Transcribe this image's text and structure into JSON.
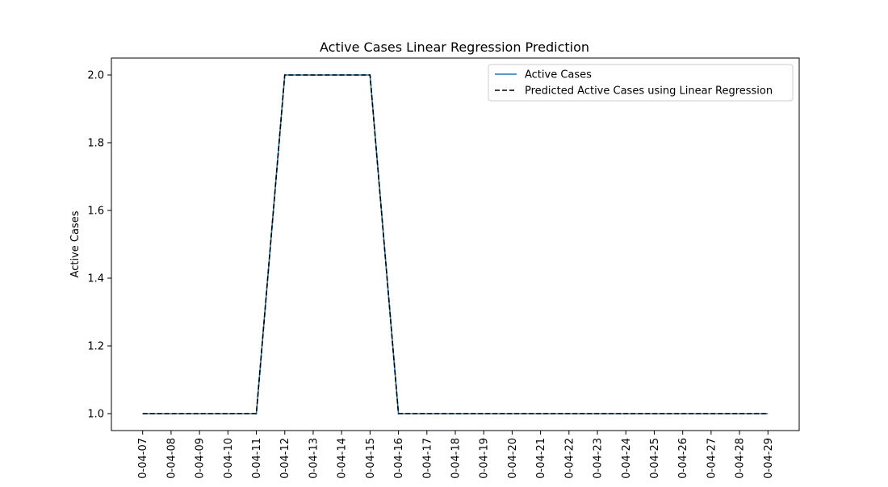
{
  "chart_data": {
    "type": "line",
    "title": "Active Cases Linear Regression Prediction",
    "xlabel": "",
    "ylabel": "Active Cases",
    "categories": [
      "0-04-07",
      "0-04-08",
      "0-04-09",
      "0-04-10",
      "0-04-11",
      "0-04-12",
      "0-04-13",
      "0-04-14",
      "0-04-15",
      "0-04-16",
      "0-04-17",
      "0-04-18",
      "0-04-19",
      "0-04-20",
      "0-04-21",
      "0-04-22",
      "0-04-23",
      "0-04-24",
      "0-04-25",
      "0-04-26",
      "0-04-27",
      "0-04-28",
      "0-04-29"
    ],
    "series": [
      {
        "name": "Active Cases",
        "color": "#1f77b4",
        "style": "solid",
        "values": [
          1,
          1,
          1,
          1,
          1,
          2,
          2,
          2,
          2,
          1,
          1,
          1,
          1,
          1,
          1,
          1,
          1,
          1,
          1,
          1,
          1,
          1,
          1
        ]
      },
      {
        "name": "Predicted Active Cases using Linear Regression",
        "color": "#000000",
        "style": "dashed",
        "values": [
          1,
          1,
          1,
          1,
          1,
          2,
          2,
          2,
          2,
          1,
          1,
          1,
          1,
          1,
          1,
          1,
          1,
          1,
          1,
          1,
          1,
          1,
          1
        ]
      }
    ],
    "ylim": [
      0.95,
      2.05
    ],
    "yticks": [
      "1.0",
      "1.2",
      "1.4",
      "1.6",
      "1.8",
      "2.0"
    ],
    "grid": false,
    "legend_position": "top-right"
  }
}
